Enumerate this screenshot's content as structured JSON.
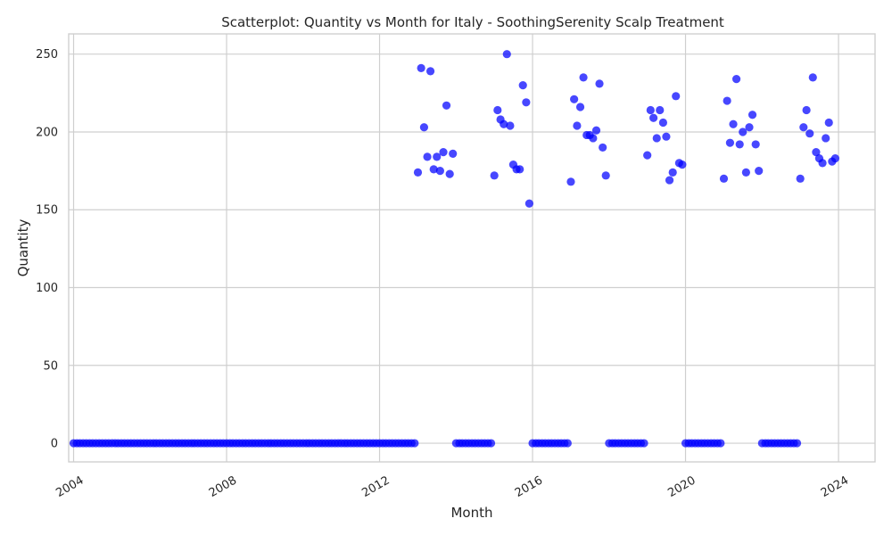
{
  "chart_data": {
    "type": "scatter",
    "title": "Scatterplot: Quantity vs Month for Italy - SoothingSerenity Scalp Treatment",
    "xlabel": "Month",
    "ylabel": "Quantity",
    "x_type": "date",
    "xlim": [
      "2003-11-15",
      "2024-12-15"
    ],
    "ylim": [
      -12,
      263
    ],
    "x_ticks": [
      "2004",
      "2008",
      "2012",
      "2016",
      "2020",
      "2024"
    ],
    "y_ticks": [
      0,
      50,
      100,
      150,
      200,
      250
    ],
    "grid": true,
    "legend": "none",
    "point_color": "#0000ff",
    "series": [
      {
        "points": [
          {
            "x": "2004-01",
            "y": 0
          },
          {
            "x": "2004-02",
            "y": 0
          },
          {
            "x": "2004-03",
            "y": 0
          },
          {
            "x": "2004-04",
            "y": 0
          },
          {
            "x": "2004-05",
            "y": 0
          },
          {
            "x": "2004-06",
            "y": 0
          },
          {
            "x": "2004-07",
            "y": 0
          },
          {
            "x": "2004-08",
            "y": 0
          },
          {
            "x": "2004-09",
            "y": 0
          },
          {
            "x": "2004-10",
            "y": 0
          },
          {
            "x": "2004-11",
            "y": 0
          },
          {
            "x": "2004-12",
            "y": 0
          },
          {
            "x": "2005-01",
            "y": 0
          },
          {
            "x": "2005-02",
            "y": 0
          },
          {
            "x": "2005-03",
            "y": 0
          },
          {
            "x": "2005-04",
            "y": 0
          },
          {
            "x": "2005-05",
            "y": 0
          },
          {
            "x": "2005-06",
            "y": 0
          },
          {
            "x": "2005-07",
            "y": 0
          },
          {
            "x": "2005-08",
            "y": 0
          },
          {
            "x": "2005-09",
            "y": 0
          },
          {
            "x": "2005-10",
            "y": 0
          },
          {
            "x": "2005-11",
            "y": 0
          },
          {
            "x": "2005-12",
            "y": 0
          },
          {
            "x": "2006-01",
            "y": 0
          },
          {
            "x": "2006-02",
            "y": 0
          },
          {
            "x": "2006-03",
            "y": 0
          },
          {
            "x": "2006-04",
            "y": 0
          },
          {
            "x": "2006-05",
            "y": 0
          },
          {
            "x": "2006-06",
            "y": 0
          },
          {
            "x": "2006-07",
            "y": 0
          },
          {
            "x": "2006-08",
            "y": 0
          },
          {
            "x": "2006-09",
            "y": 0
          },
          {
            "x": "2006-10",
            "y": 0
          },
          {
            "x": "2006-11",
            "y": 0
          },
          {
            "x": "2006-12",
            "y": 0
          },
          {
            "x": "2007-01",
            "y": 0
          },
          {
            "x": "2007-02",
            "y": 0
          },
          {
            "x": "2007-03",
            "y": 0
          },
          {
            "x": "2007-04",
            "y": 0
          },
          {
            "x": "2007-05",
            "y": 0
          },
          {
            "x": "2007-06",
            "y": 0
          },
          {
            "x": "2007-07",
            "y": 0
          },
          {
            "x": "2007-08",
            "y": 0
          },
          {
            "x": "2007-09",
            "y": 0
          },
          {
            "x": "2007-10",
            "y": 0
          },
          {
            "x": "2007-11",
            "y": 0
          },
          {
            "x": "2007-12",
            "y": 0
          },
          {
            "x": "2008-01",
            "y": 0
          },
          {
            "x": "2008-02",
            "y": 0
          },
          {
            "x": "2008-03",
            "y": 0
          },
          {
            "x": "2008-04",
            "y": 0
          },
          {
            "x": "2008-05",
            "y": 0
          },
          {
            "x": "2008-06",
            "y": 0
          },
          {
            "x": "2008-07",
            "y": 0
          },
          {
            "x": "2008-08",
            "y": 0
          },
          {
            "x": "2008-09",
            "y": 0
          },
          {
            "x": "2008-10",
            "y": 0
          },
          {
            "x": "2008-11",
            "y": 0
          },
          {
            "x": "2008-12",
            "y": 0
          },
          {
            "x": "2009-01",
            "y": 0
          },
          {
            "x": "2009-02",
            "y": 0
          },
          {
            "x": "2009-03",
            "y": 0
          },
          {
            "x": "2009-04",
            "y": 0
          },
          {
            "x": "2009-05",
            "y": 0
          },
          {
            "x": "2009-06",
            "y": 0
          },
          {
            "x": "2009-07",
            "y": 0
          },
          {
            "x": "2009-08",
            "y": 0
          },
          {
            "x": "2009-09",
            "y": 0
          },
          {
            "x": "2009-10",
            "y": 0
          },
          {
            "x": "2009-11",
            "y": 0
          },
          {
            "x": "2009-12",
            "y": 0
          },
          {
            "x": "2010-01",
            "y": 0
          },
          {
            "x": "2010-02",
            "y": 0
          },
          {
            "x": "2010-03",
            "y": 0
          },
          {
            "x": "2010-04",
            "y": 0
          },
          {
            "x": "2010-05",
            "y": 0
          },
          {
            "x": "2010-06",
            "y": 0
          },
          {
            "x": "2010-07",
            "y": 0
          },
          {
            "x": "2010-08",
            "y": 0
          },
          {
            "x": "2010-09",
            "y": 0
          },
          {
            "x": "2010-10",
            "y": 0
          },
          {
            "x": "2010-11",
            "y": 0
          },
          {
            "x": "2010-12",
            "y": 0
          },
          {
            "x": "2011-01",
            "y": 0
          },
          {
            "x": "2011-02",
            "y": 0
          },
          {
            "x": "2011-03",
            "y": 0
          },
          {
            "x": "2011-04",
            "y": 0
          },
          {
            "x": "2011-05",
            "y": 0
          },
          {
            "x": "2011-06",
            "y": 0
          },
          {
            "x": "2011-07",
            "y": 0
          },
          {
            "x": "2011-08",
            "y": 0
          },
          {
            "x": "2011-09",
            "y": 0
          },
          {
            "x": "2011-10",
            "y": 0
          },
          {
            "x": "2011-11",
            "y": 0
          },
          {
            "x": "2011-12",
            "y": 0
          },
          {
            "x": "2012-01",
            "y": 0
          },
          {
            "x": "2012-02",
            "y": 0
          },
          {
            "x": "2012-03",
            "y": 0
          },
          {
            "x": "2012-04",
            "y": 0
          },
          {
            "x": "2012-05",
            "y": 0
          },
          {
            "x": "2012-06",
            "y": 0
          },
          {
            "x": "2012-07",
            "y": 0
          },
          {
            "x": "2012-08",
            "y": 0
          },
          {
            "x": "2012-09",
            "y": 0
          },
          {
            "x": "2012-10",
            "y": 0
          },
          {
            "x": "2012-11",
            "y": 0
          },
          {
            "x": "2012-12",
            "y": 0
          },
          {
            "x": "2013-01",
            "y": 174
          },
          {
            "x": "2013-02",
            "y": 241
          },
          {
            "x": "2013-03",
            "y": 203
          },
          {
            "x": "2013-04",
            "y": 184
          },
          {
            "x": "2013-05",
            "y": 239
          },
          {
            "x": "2013-06",
            "y": 176
          },
          {
            "x": "2013-07",
            "y": 184
          },
          {
            "x": "2013-08",
            "y": 175
          },
          {
            "x": "2013-09",
            "y": 187
          },
          {
            "x": "2013-10",
            "y": 217
          },
          {
            "x": "2013-11",
            "y": 173
          },
          {
            "x": "2013-12",
            "y": 186
          },
          {
            "x": "2014-01",
            "y": 0
          },
          {
            "x": "2014-02",
            "y": 0
          },
          {
            "x": "2014-03",
            "y": 0
          },
          {
            "x": "2014-04",
            "y": 0
          },
          {
            "x": "2014-05",
            "y": 0
          },
          {
            "x": "2014-06",
            "y": 0
          },
          {
            "x": "2014-07",
            "y": 0
          },
          {
            "x": "2014-08",
            "y": 0
          },
          {
            "x": "2014-09",
            "y": 0
          },
          {
            "x": "2014-10",
            "y": 0
          },
          {
            "x": "2014-11",
            "y": 0
          },
          {
            "x": "2014-12",
            "y": 0
          },
          {
            "x": "2015-01",
            "y": 172
          },
          {
            "x": "2015-02",
            "y": 214
          },
          {
            "x": "2015-03",
            "y": 208
          },
          {
            "x": "2015-04",
            "y": 205
          },
          {
            "x": "2015-05",
            "y": 250
          },
          {
            "x": "2015-06",
            "y": 204
          },
          {
            "x": "2015-07",
            "y": 179
          },
          {
            "x": "2015-08",
            "y": 176
          },
          {
            "x": "2015-09",
            "y": 176
          },
          {
            "x": "2015-10",
            "y": 230
          },
          {
            "x": "2015-11",
            "y": 219
          },
          {
            "x": "2015-12",
            "y": 154
          },
          {
            "x": "2016-01",
            "y": 0
          },
          {
            "x": "2016-02",
            "y": 0
          },
          {
            "x": "2016-03",
            "y": 0
          },
          {
            "x": "2016-04",
            "y": 0
          },
          {
            "x": "2016-05",
            "y": 0
          },
          {
            "x": "2016-06",
            "y": 0
          },
          {
            "x": "2016-07",
            "y": 0
          },
          {
            "x": "2016-08",
            "y": 0
          },
          {
            "x": "2016-09",
            "y": 0
          },
          {
            "x": "2016-10",
            "y": 0
          },
          {
            "x": "2016-11",
            "y": 0
          },
          {
            "x": "2016-12",
            "y": 0
          },
          {
            "x": "2017-01",
            "y": 168
          },
          {
            "x": "2017-02",
            "y": 221
          },
          {
            "x": "2017-03",
            "y": 204
          },
          {
            "x": "2017-04",
            "y": 216
          },
          {
            "x": "2017-05",
            "y": 235
          },
          {
            "x": "2017-06",
            "y": 198
          },
          {
            "x": "2017-07",
            "y": 198
          },
          {
            "x": "2017-08",
            "y": 196
          },
          {
            "x": "2017-09",
            "y": 201
          },
          {
            "x": "2017-10",
            "y": 231
          },
          {
            "x": "2017-11",
            "y": 190
          },
          {
            "x": "2017-12",
            "y": 172
          },
          {
            "x": "2018-01",
            "y": 0
          },
          {
            "x": "2018-02",
            "y": 0
          },
          {
            "x": "2018-03",
            "y": 0
          },
          {
            "x": "2018-04",
            "y": 0
          },
          {
            "x": "2018-05",
            "y": 0
          },
          {
            "x": "2018-06",
            "y": 0
          },
          {
            "x": "2018-07",
            "y": 0
          },
          {
            "x": "2018-08",
            "y": 0
          },
          {
            "x": "2018-09",
            "y": 0
          },
          {
            "x": "2018-10",
            "y": 0
          },
          {
            "x": "2018-11",
            "y": 0
          },
          {
            "x": "2018-12",
            "y": 0
          },
          {
            "x": "2019-01",
            "y": 185
          },
          {
            "x": "2019-02",
            "y": 214
          },
          {
            "x": "2019-03",
            "y": 209
          },
          {
            "x": "2019-04",
            "y": 196
          },
          {
            "x": "2019-05",
            "y": 214
          },
          {
            "x": "2019-06",
            "y": 206
          },
          {
            "x": "2019-07",
            "y": 197
          },
          {
            "x": "2019-08",
            "y": 169
          },
          {
            "x": "2019-09",
            "y": 174
          },
          {
            "x": "2019-10",
            "y": 223
          },
          {
            "x": "2019-11",
            "y": 180
          },
          {
            "x": "2019-12",
            "y": 179
          },
          {
            "x": "2020-01",
            "y": 0
          },
          {
            "x": "2020-02",
            "y": 0
          },
          {
            "x": "2020-03",
            "y": 0
          },
          {
            "x": "2020-04",
            "y": 0
          },
          {
            "x": "2020-05",
            "y": 0
          },
          {
            "x": "2020-06",
            "y": 0
          },
          {
            "x": "2020-07",
            "y": 0
          },
          {
            "x": "2020-08",
            "y": 0
          },
          {
            "x": "2020-09",
            "y": 0
          },
          {
            "x": "2020-10",
            "y": 0
          },
          {
            "x": "2020-11",
            "y": 0
          },
          {
            "x": "2020-12",
            "y": 0
          },
          {
            "x": "2021-01",
            "y": 170
          },
          {
            "x": "2021-02",
            "y": 220
          },
          {
            "x": "2021-03",
            "y": 193
          },
          {
            "x": "2021-04",
            "y": 205
          },
          {
            "x": "2021-05",
            "y": 234
          },
          {
            "x": "2021-06",
            "y": 192
          },
          {
            "x": "2021-07",
            "y": 200
          },
          {
            "x": "2021-08",
            "y": 174
          },
          {
            "x": "2021-09",
            "y": 203
          },
          {
            "x": "2021-10",
            "y": 211
          },
          {
            "x": "2021-11",
            "y": 192
          },
          {
            "x": "2021-12",
            "y": 175
          },
          {
            "x": "2022-01",
            "y": 0
          },
          {
            "x": "2022-02",
            "y": 0
          },
          {
            "x": "2022-03",
            "y": 0
          },
          {
            "x": "2022-04",
            "y": 0
          },
          {
            "x": "2022-05",
            "y": 0
          },
          {
            "x": "2022-06",
            "y": 0
          },
          {
            "x": "2022-07",
            "y": 0
          },
          {
            "x": "2022-08",
            "y": 0
          },
          {
            "x": "2022-09",
            "y": 0
          },
          {
            "x": "2022-10",
            "y": 0
          },
          {
            "x": "2022-11",
            "y": 0
          },
          {
            "x": "2022-12",
            "y": 0
          },
          {
            "x": "2023-01",
            "y": 170
          },
          {
            "x": "2023-02",
            "y": 203
          },
          {
            "x": "2023-03",
            "y": 214
          },
          {
            "x": "2023-04",
            "y": 199
          },
          {
            "x": "2023-05",
            "y": 235
          },
          {
            "x": "2023-06",
            "y": 187
          },
          {
            "x": "2023-07",
            "y": 183
          },
          {
            "x": "2023-08",
            "y": 180
          },
          {
            "x": "2023-09",
            "y": 196
          },
          {
            "x": "2023-10",
            "y": 206
          },
          {
            "x": "2023-11",
            "y": 181
          },
          {
            "x": "2023-12",
            "y": 183
          }
        ]
      }
    ]
  }
}
